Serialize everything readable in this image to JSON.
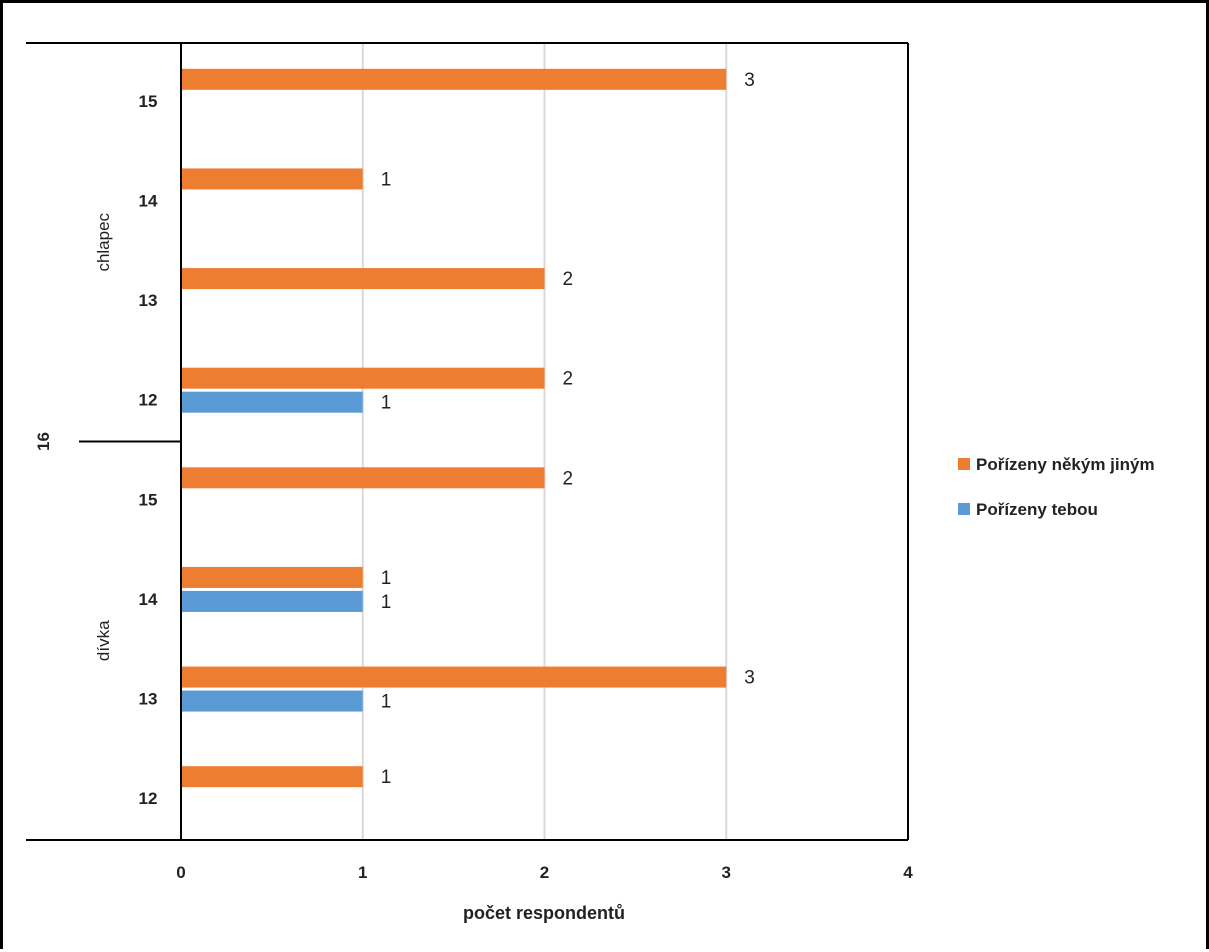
{
  "chart_data": {
    "type": "bar",
    "orientation": "horizontal",
    "xlabel": "počet respondentů",
    "xlim": [
      0,
      4
    ],
    "xticks": [
      "0",
      "1",
      "2",
      "3",
      "4"
    ],
    "grid": true,
    "legend_position": "right",
    "outer_category": "16",
    "groups": [
      {
        "name": "chlapec",
        "categories": [
          "15",
          "14",
          "13",
          "12"
        ]
      },
      {
        "name": "dívka",
        "categories": [
          "15",
          "14",
          "13",
          "12"
        ]
      }
    ],
    "series": [
      {
        "name": "Pořízeny někým jiným",
        "color": "#ED7D31",
        "values": [
          [
            3,
            1,
            2,
            2
          ],
          [
            2,
            1,
            3,
            1
          ]
        ]
      },
      {
        "name": "Pořízeny tebou",
        "color": "#5B9BD5",
        "values": [
          [
            null,
            null,
            null,
            1
          ],
          [
            null,
            1,
            1,
            null
          ]
        ]
      }
    ]
  }
}
